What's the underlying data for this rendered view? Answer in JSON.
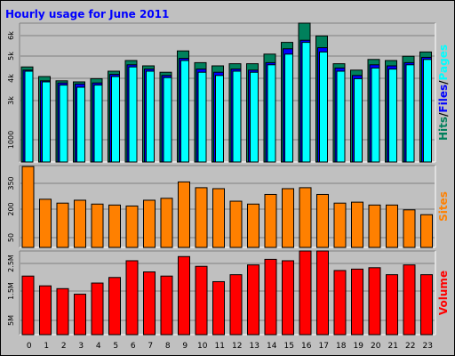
{
  "chart_data": {
    "title": "Hourly usage for June 2011",
    "type": "bar",
    "categories": [
      "0",
      "1",
      "2",
      "3",
      "4",
      "5",
      "6",
      "7",
      "8",
      "9",
      "10",
      "11",
      "12",
      "13",
      "14",
      "15",
      "16",
      "17",
      "18",
      "19",
      "20",
      "21",
      "22",
      "23"
    ],
    "colors": {
      "hits": "#00805c",
      "files": "#0000ff",
      "pages": "#00ffff",
      "sites": "#ff8000",
      "volume": "#ff0000",
      "panel": "#c0c0c0",
      "border": "#000000"
    },
    "panels": [
      {
        "id": "hits-files-pages",
        "legend": [
          {
            "text": "Hits",
            "color": "#00805c"
          },
          {
            "text": "/",
            "color": "#000000"
          },
          {
            "text": "Files",
            "color": "#0000ff"
          },
          {
            "text": "/",
            "color": "#000000"
          },
          {
            "text": "Pages",
            "color": "#00ffff"
          }
        ],
        "tick_labels": [
          "6k",
          "5k",
          "4k",
          "3k",
          "1000"
        ],
        "ylim": [
          0,
          6500
        ],
        "series": [
          {
            "name": "Hits",
            "values": [
              4450,
              4000,
              3800,
              3750,
              3900,
              4250,
              4750,
              4500,
              4200,
              5200,
              4650,
              4500,
              4600,
              4600,
              5050,
              5600,
              6500,
              5900,
              4600,
              4300,
              4800,
              4750,
              4950,
              5150
            ]
          },
          {
            "name": "Files",
            "values": [
              4300,
              3800,
              3700,
              3650,
              3700,
              4100,
              4550,
              4350,
              4050,
              4850,
              4350,
              4200,
              4350,
              4300,
              4650,
              5300,
              5700,
              5350,
              4400,
              4050,
              4550,
              4500,
              4650,
              4900
            ]
          },
          {
            "name": "Pages",
            "values": [
              4250,
              3750,
              3600,
              3500,
              3600,
              4000,
              4450,
              4250,
              3950,
              4750,
              4200,
              4050,
              4250,
              4200,
              4550,
              5050,
              5600,
              5150,
              4250,
              3900,
              4400,
              4350,
              4550,
              4800
            ]
          }
        ]
      },
      {
        "id": "sites",
        "legend": [
          {
            "text": "Sites",
            "color": "#ff8000"
          }
        ],
        "tick_labels": [
          "350",
          "200",
          "50"
        ],
        "ylim": [
          0,
          425
        ],
        "series": [
          {
            "name": "Sites",
            "values": [
              420,
              250,
              230,
              245,
              225,
              220,
              215,
              245,
              255,
              340,
              310,
              305,
              240,
              225,
              275,
              305,
              310,
              275,
              230,
              235,
              220,
              220,
              195,
              170
            ]
          }
        ]
      },
      {
        "id": "volume",
        "legend": [
          {
            "text": "Volume",
            "color": "#ff0000"
          }
        ],
        "tick_labels": [
          "2.5M",
          "1.5M",
          "5M"
        ],
        "ylim": [
          0,
          3000000
        ],
        "series": [
          {
            "name": "Volume",
            "values": [
              2100000,
              1750000,
              1650000,
              1450000,
              1850000,
              2050000,
              2650000,
              2250000,
              2100000,
              2800000,
              2450000,
              1900000,
              2150000,
              2500000,
              2700000,
              2650000,
              3000000,
              3000000,
              2300000,
              2350000,
              2400000,
              2150000,
              2500000,
              2150000
            ]
          }
        ]
      }
    ]
  }
}
